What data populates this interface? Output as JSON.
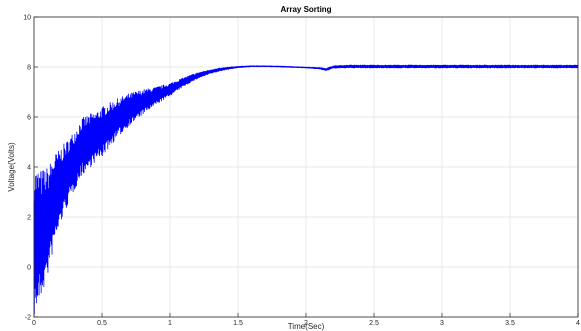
{
  "chart_data": {
    "type": "line",
    "title": "Array Sorting",
    "xlabel": "Time(Sec)",
    "ylabel": "Voltage(Volts)",
    "xlim": [
      0,
      4
    ],
    "ylim": [
      -2,
      10
    ],
    "xticks": [
      0,
      0.5,
      1,
      1.5,
      2,
      2.5,
      3,
      3.5,
      4
    ],
    "xtick_labels": [
      "0",
      "0.5",
      "1",
      "1.5",
      "2",
      "2.5",
      "3",
      "3.5",
      "4"
    ],
    "yticks": [
      -2,
      0,
      2,
      4,
      6,
      8,
      10
    ],
    "ytick_labels": [
      "-2",
      "0",
      "2",
      "4",
      "6",
      "8",
      "10"
    ],
    "grid": true,
    "series": [
      {
        "color": "#0000ff",
        "x": [
          0,
          0.05,
          0.1,
          0.15,
          0.2,
          0.25,
          0.3,
          0.35,
          0.4,
          0.45,
          0.5,
          0.6,
          0.7,
          0.8,
          0.9,
          1.0,
          1.1,
          1.2,
          1.3,
          1.4,
          1.5,
          1.6,
          1.7,
          1.8,
          1.9,
          2.0,
          2.1,
          2.15,
          2.2,
          2.3,
          2.5,
          3.0,
          3.5,
          4.0
        ],
        "y": [
          1.0,
          1.3,
          1.8,
          2.7,
          3.3,
          3.8,
          4.3,
          4.8,
          5.0,
          5.2,
          5.4,
          5.9,
          6.3,
          6.6,
          6.85,
          7.1,
          7.4,
          7.65,
          7.82,
          7.93,
          8.0,
          8.03,
          8.03,
          8.02,
          8.0,
          7.98,
          7.95,
          7.9,
          8.0,
          8.02,
          8.02,
          8.02,
          8.02,
          8.02
        ],
        "oscillation_amplitude": [
          3.0,
          2.6,
          2.2,
          1.8,
          1.5,
          1.3,
          1.2,
          1.15,
          1.1,
          1.0,
          1.0,
          0.8,
          0.65,
          0.5,
          0.35,
          0.25,
          0.18,
          0.12,
          0.08,
          0.05,
          0.03,
          0.02,
          0.02,
          0.02,
          0.02,
          0.02,
          0.03,
          0.05,
          0.05,
          0.06,
          0.06,
          0.06,
          0.06,
          0.06
        ]
      }
    ]
  }
}
